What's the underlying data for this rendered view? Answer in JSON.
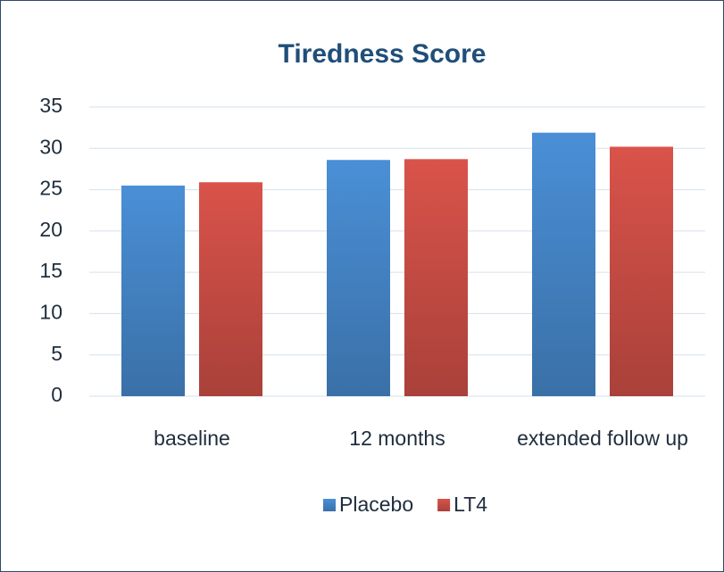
{
  "chart_data": {
    "type": "bar",
    "title": "Tiredness Score",
    "categories": [
      "baseline",
      "12 months",
      "extended follow up"
    ],
    "series": [
      {
        "name": "Placebo",
        "color": "#4a8fd6",
        "values": [
          25.5,
          28.6,
          31.9
        ]
      },
      {
        "name": "LT4",
        "color": "#d9534a",
        "values": [
          25.9,
          28.7,
          30.2
        ]
      }
    ],
    "ylim": [
      0,
      35
    ],
    "yticks": [
      0,
      5,
      10,
      15,
      20,
      25,
      30,
      35
    ],
    "grid": true,
    "legend": "bottom"
  }
}
